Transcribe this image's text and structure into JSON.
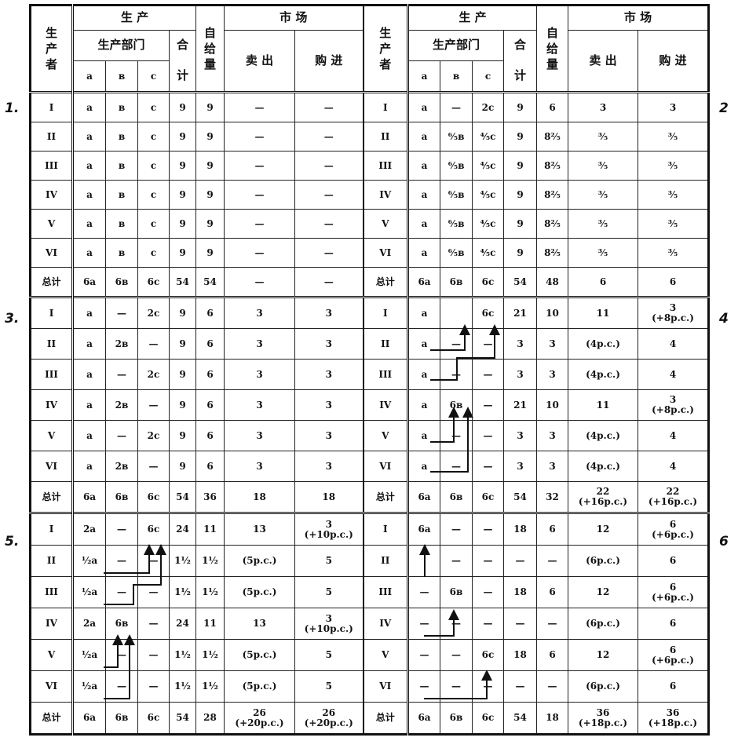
{
  "header": {
    "producer": "生产者",
    "production": "生    产",
    "departments": "生产部门",
    "total_top": "合",
    "total_bottom": "计",
    "self_supply": "自给量",
    "market": "市    场",
    "sell": "卖  出",
    "buy": "购  进",
    "sub_a": "a",
    "sub_b": "в",
    "sub_c": "c"
  },
  "sections": [
    {
      "left_label": "1.",
      "right_label": "2",
      "rows": [
        {
          "left": [
            "I",
            "a",
            "в",
            "c",
            "9",
            "9",
            "—",
            "—"
          ],
          "right": [
            "I",
            "a",
            "—",
            "2c",
            "9",
            "6",
            "3",
            "3"
          ]
        },
        {
          "left": [
            "II",
            "a",
            "в",
            "c",
            "9",
            "9",
            "—",
            "—"
          ],
          "right": [
            "II",
            "a",
            "⁶⁄₅в",
            "⁴⁄₅c",
            "9",
            "8²⁄₅",
            "³⁄₅",
            "³⁄₅"
          ]
        },
        {
          "left": [
            "III",
            "a",
            "в",
            "c",
            "9",
            "9",
            "—",
            "—"
          ],
          "right": [
            "III",
            "a",
            "⁶⁄₅в",
            "⁴⁄₅c",
            "9",
            "8²⁄₅",
            "³⁄₅",
            "³⁄₅"
          ]
        },
        {
          "left": [
            "IV",
            "a",
            "в",
            "c",
            "9",
            "9",
            "—",
            "—"
          ],
          "right": [
            "IV",
            "a",
            "⁶⁄₅в",
            "⁴⁄₅c",
            "9",
            "8²⁄₅",
            "³⁄₅",
            "³⁄₅"
          ]
        },
        {
          "left": [
            "V",
            "a",
            "в",
            "c",
            "9",
            "9",
            "—",
            "—"
          ],
          "right": [
            "V",
            "a",
            "⁶⁄₅в",
            "⁴⁄₅c",
            "9",
            "8²⁄₅",
            "³⁄₅",
            "³⁄₅"
          ]
        },
        {
          "left": [
            "VI",
            "a",
            "в",
            "c",
            "9",
            "9",
            "—",
            "—"
          ],
          "right": [
            "VI",
            "a",
            "⁶⁄₅в",
            "⁴⁄₅c",
            "9",
            "8²⁄₅",
            "³⁄₅",
            "³⁄₅"
          ]
        },
        {
          "left": [
            "总计",
            "6a",
            "6в",
            "6c",
            "54",
            "54",
            "—",
            "—"
          ],
          "right": [
            "总计",
            "6a",
            "6в",
            "6c",
            "54",
            "48",
            "6",
            "6"
          ]
        }
      ]
    },
    {
      "left_label": "3.",
      "right_label": "4",
      "rows": [
        {
          "left": [
            "I",
            "a",
            "—",
            "2c",
            "9",
            "6",
            "3",
            "3"
          ],
          "right": [
            "I",
            "a",
            "",
            "6c",
            "21",
            "10",
            "11",
            "3\n(+8p.c.)"
          ]
        },
        {
          "left": [
            "II",
            "a",
            "2в",
            "—",
            "9",
            "6",
            "3",
            "3"
          ],
          "right": [
            "II",
            "a",
            "—",
            "—",
            "3",
            "3",
            "(4p.c.)",
            "4"
          ]
        },
        {
          "left": [
            "III",
            "a",
            "—",
            "2c",
            "9",
            "6",
            "3",
            "3"
          ],
          "right": [
            "III",
            "a",
            "—",
            "—",
            "3",
            "3",
            "(4p.c.)",
            "4"
          ]
        },
        {
          "left": [
            "IV",
            "a",
            "2в",
            "—",
            "9",
            "6",
            "3",
            "3"
          ],
          "right": [
            "IV",
            "a",
            "6в",
            "—",
            "21",
            "10",
            "11",
            "3\n(+8p.c.)"
          ]
        },
        {
          "left": [
            "V",
            "a",
            "—",
            "2c",
            "9",
            "6",
            "3",
            "3"
          ],
          "right": [
            "V",
            "a",
            "—",
            "—",
            "3",
            "3",
            "(4p.c.)",
            "4"
          ]
        },
        {
          "left": [
            "VI",
            "a",
            "2в",
            "—",
            "9",
            "6",
            "3",
            "3"
          ],
          "right": [
            "VI",
            "a",
            "—",
            "—",
            "3",
            "3",
            "(4p.c.)",
            "4"
          ]
        },
        {
          "left": [
            "总计",
            "6a",
            "6в",
            "6c",
            "54",
            "36",
            "18",
            "18"
          ],
          "right": [
            "总计",
            "6a",
            "6в",
            "6c",
            "54",
            "32",
            "22\n(+16p.c.)",
            "22\n(+16p.c.)"
          ]
        }
      ]
    },
    {
      "left_label": "5.",
      "right_label": "6",
      "rows": [
        {
          "left": [
            "I",
            "2a",
            "—",
            "6c",
            "24",
            "11",
            "13",
            "3\n(+10p.c.)"
          ],
          "right": [
            "I",
            "6a",
            "—",
            "—",
            "18",
            "6",
            "12",
            "6\n(+6p.c.)"
          ]
        },
        {
          "left": [
            "II",
            "½a",
            "—",
            "—",
            "1½",
            "1½",
            "(5p.c.)",
            "5"
          ],
          "right": [
            "II",
            "",
            "—",
            "—",
            "—",
            "—",
            "(6p.c.)",
            "6"
          ]
        },
        {
          "left": [
            "III",
            "½a",
            "—",
            "—",
            "1½",
            "1½",
            "(5p.c.)",
            "5"
          ],
          "right": [
            "III",
            "—",
            "6в",
            "—",
            "18",
            "6",
            "12",
            "6\n(+6p.c.)"
          ]
        },
        {
          "left": [
            "IV",
            "2a",
            "6в",
            "—",
            "24",
            "11",
            "13",
            "3\n(+10p.c.)"
          ],
          "right": [
            "IV",
            "—",
            "—",
            "—",
            "—",
            "—",
            "(6p.c.)",
            "6"
          ]
        },
        {
          "left": [
            "V",
            "½a",
            "—",
            "—",
            "1½",
            "1½",
            "(5p.c.)",
            "5"
          ],
          "right": [
            "V",
            "—",
            "—",
            "6c",
            "18",
            "6",
            "12",
            "6\n(+6p.c.)"
          ]
        },
        {
          "left": [
            "VI",
            "½a",
            "—",
            "—",
            "1½",
            "1½",
            "(5p.c.)",
            "5"
          ],
          "right": [
            "VI",
            "—",
            "—",
            "—",
            "—",
            "—",
            "(6p.c.)",
            "6"
          ]
        },
        {
          "left": [
            "总计",
            "6a",
            "6в",
            "6c",
            "54",
            "28",
            "26\n(+20p.c.)",
            "26\n(+20p.c.)"
          ],
          "right": [
            "总计",
            "6a",
            "6в",
            "6c",
            "54",
            "18",
            "36\n(+18p.c.)",
            "36\n(+18p.c.)"
          ]
        }
      ]
    }
  ]
}
